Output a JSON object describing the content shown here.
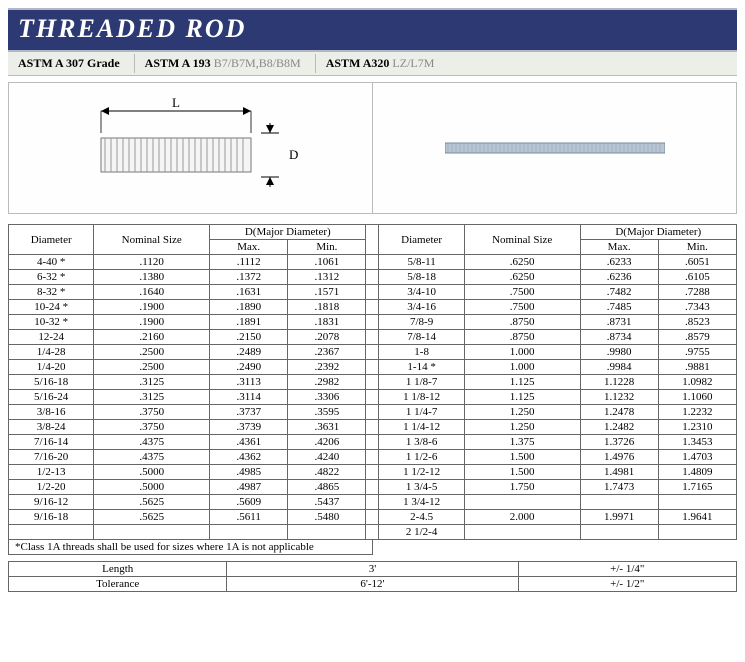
{
  "title": "THREADED ROD",
  "standards": [
    {
      "bold": "ASTM A 307 Grade",
      "light": ""
    },
    {
      "bold": "ASTM A 193",
      "light": "B7/B7M,B8/B8M"
    },
    {
      "bold": "ASTM A320",
      "light": "LZ/L7M"
    }
  ],
  "diagram": {
    "L": "L",
    "D": "D"
  },
  "table": {
    "headers": {
      "dia": "Diameter",
      "nom": "Nominal Size",
      "dmaj": "D(Major Diameter)",
      "max": "Max.",
      "min": "Min."
    },
    "left": [
      [
        "4-40 *",
        ".1120",
        ".1112",
        ".1061"
      ],
      [
        "6-32 *",
        ".1380",
        ".1372",
        ".1312"
      ],
      [
        "8-32 *",
        ".1640",
        ".1631",
        ".1571"
      ],
      [
        "10-24 *",
        ".1900",
        ".1890",
        ".1818"
      ],
      [
        "10-32 *",
        ".1900",
        ".1891",
        ".1831"
      ],
      [
        "12-24",
        ".2160",
        ".2150",
        ".2078"
      ],
      [
        "1/4-28",
        ".2500",
        ".2489",
        ".2367"
      ],
      [
        "1/4-20",
        ".2500",
        ".2490",
        ".2392"
      ],
      [
        "5/16-18",
        ".3125",
        ".3113",
        ".2982"
      ],
      [
        "5/16-24",
        ".3125",
        ".3114",
        ".3306"
      ],
      [
        "3/8-16",
        ".3750",
        ".3737",
        ".3595"
      ],
      [
        "3/8-24",
        ".3750",
        ".3739",
        ".3631"
      ],
      [
        "7/16-14",
        ".4375",
        ".4361",
        ".4206"
      ],
      [
        "7/16-20",
        ".4375",
        ".4362",
        ".4240"
      ],
      [
        "1/2-13",
        ".5000",
        ".4985",
        ".4822"
      ],
      [
        "1/2-20",
        ".5000",
        ".4987",
        ".4865"
      ],
      [
        "9/16-12",
        ".5625",
        ".5609",
        ".5437"
      ],
      [
        "9/16-18",
        ".5625",
        ".5611",
        ".5480"
      ]
    ],
    "right": [
      [
        "5/8-11",
        ".6250",
        ".6233",
        ".6051"
      ],
      [
        "5/8-18",
        ".6250",
        ".6236",
        ".6105"
      ],
      [
        "3/4-10",
        ".7500",
        ".7482",
        ".7288"
      ],
      [
        "3/4-16",
        ".7500",
        ".7485",
        ".7343"
      ],
      [
        "7/8-9",
        ".8750",
        ".8731",
        ".8523"
      ],
      [
        "7/8-14",
        ".8750",
        ".8734",
        ".8579"
      ],
      [
        "1-8",
        "1.000",
        ".9980",
        ".9755"
      ],
      [
        "1-14 *",
        "1.000",
        ".9984",
        ".9881"
      ],
      [
        "1 1/8-7",
        "1.125",
        "1.1228",
        "1.0982"
      ],
      [
        "1 1/8-12",
        "1.125",
        "1.1232",
        "1.1060"
      ],
      [
        "1 1/4-7",
        "1.250",
        "1.2478",
        "1.2232"
      ],
      [
        "1 1/4-12",
        "1.250",
        "1.2482",
        "1.2310"
      ],
      [
        "1 3/8-6",
        "1.375",
        "1.3726",
        "1.3453"
      ],
      [
        "1 1/2-6",
        "1.500",
        "1.4976",
        "1.4703"
      ],
      [
        "1 1/2-12",
        "1.500",
        "1.4981",
        "1.4809"
      ],
      [
        "1 3/4-5",
        "1.750",
        "1.7473",
        "1.7165"
      ],
      [
        "1 3/4-12",
        "",
        "",
        ""
      ],
      [
        "2-4.5",
        "2.000",
        "1.9971",
        "1.9641"
      ],
      [
        "2 1/2-4",
        "",
        "",
        ""
      ]
    ],
    "footnote": "*Class 1A threads shall be used for sizes where 1A is not applicable"
  },
  "tolerance": {
    "rows": [
      [
        "Length",
        "3'",
        "+/- 1/4\""
      ],
      [
        "Tolerance",
        "6'-12'",
        "+/- 1/2\""
      ]
    ]
  },
  "colors": {
    "titleBg": "#2c3972",
    "titleText": "#ffffff",
    "border": "#666666",
    "light": "#888888"
  }
}
